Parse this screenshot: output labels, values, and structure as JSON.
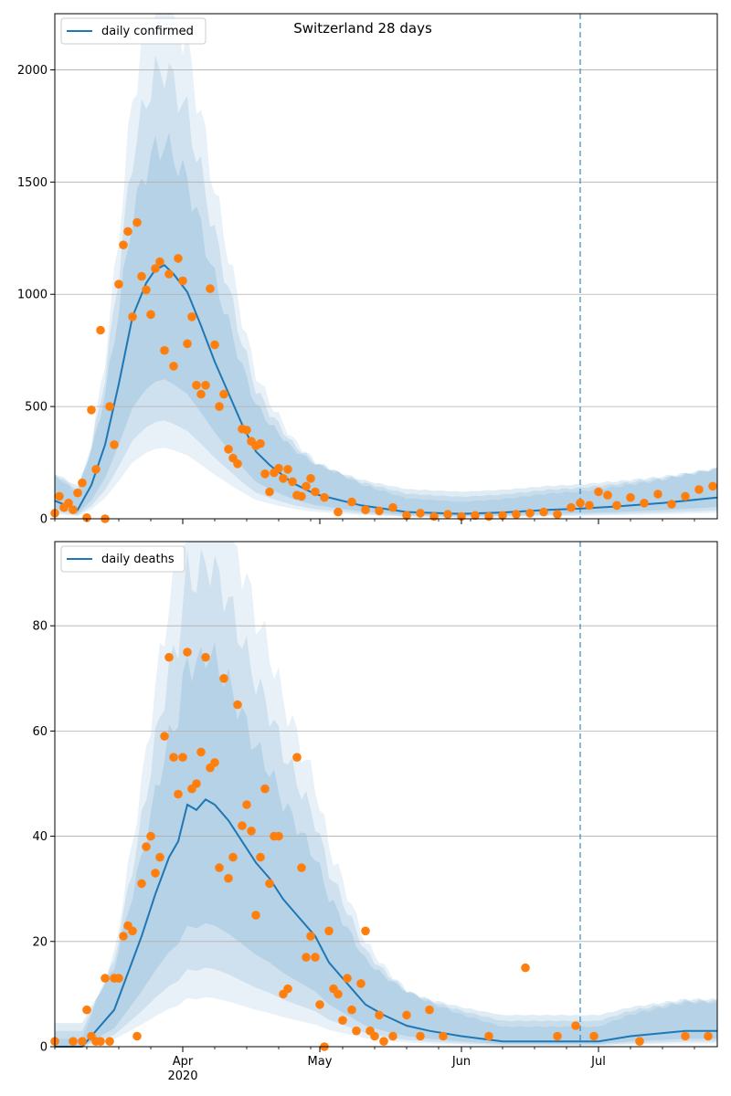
{
  "figure": {
    "title": "Switzerland 28 days"
  },
  "chart_data": [
    {
      "type": "line",
      "title": "Switzerland 28 days",
      "xlabel": "",
      "ylabel": "",
      "x_ticks": [
        {
          "date": "2020-04-01",
          "label": "Apr",
          "sublabel": "2020"
        },
        {
          "date": "2020-05-01",
          "label": "May",
          "sublabel": ""
        },
        {
          "date": "2020-06-01",
          "label": "Jun",
          "sublabel": ""
        },
        {
          "date": "2020-07-01",
          "label": "Jul",
          "sublabel": ""
        }
      ],
      "y_ticks": [
        0,
        500,
        1000,
        1500,
        2000
      ],
      "xlim": [
        "2020-03-04",
        "2020-07-27"
      ],
      "ylim": [
        0,
        2250
      ],
      "grid": "horizontal",
      "legend_position": "top-left",
      "forecast_start": "2020-06-27",
      "colors": {
        "model": "#1f77b4",
        "observed": "#ff7f0e",
        "band": "#1f77b4"
      },
      "series": [
        {
          "name": "daily confirmed",
          "kind": "line",
          "x": [
            "2020-03-04",
            "2020-03-09",
            "2020-03-12",
            "2020-03-15",
            "2020-03-18",
            "2020-03-21",
            "2020-03-24",
            "2020-03-26",
            "2020-03-28",
            "2020-03-30",
            "2020-04-02",
            "2020-04-05",
            "2020-04-08",
            "2020-04-11",
            "2020-04-14",
            "2020-04-17",
            "2020-04-20",
            "2020-04-25",
            "2020-04-30",
            "2020-05-10",
            "2020-05-20",
            "2020-06-01",
            "2020-06-10",
            "2020-06-20",
            "2020-06-27",
            "2020-07-05",
            "2020-07-15",
            "2020-07-27"
          ],
          "y": [
            80,
            40,
            150,
            330,
            600,
            900,
            1050,
            1110,
            1130,
            1090,
            1010,
            860,
            700,
            560,
            420,
            300,
            240,
            160,
            110,
            60,
            30,
            22,
            28,
            40,
            45,
            55,
            70,
            95
          ]
        },
        {
          "name": "",
          "kind": "scatter",
          "x": [
            "2020-03-04",
            "2020-03-05",
            "2020-03-06",
            "2020-03-07",
            "2020-03-08",
            "2020-03-09",
            "2020-03-10",
            "2020-03-11",
            "2020-03-12",
            "2020-03-13",
            "2020-03-14",
            "2020-03-15",
            "2020-03-16",
            "2020-03-17",
            "2020-03-18",
            "2020-03-19",
            "2020-03-20",
            "2020-03-21",
            "2020-03-22",
            "2020-03-23",
            "2020-03-24",
            "2020-03-25",
            "2020-03-26",
            "2020-03-27",
            "2020-03-28",
            "2020-03-29",
            "2020-03-30",
            "2020-03-31",
            "2020-04-01",
            "2020-04-02",
            "2020-04-03",
            "2020-04-04",
            "2020-04-05",
            "2020-04-06",
            "2020-04-07",
            "2020-04-08",
            "2020-04-09",
            "2020-04-10",
            "2020-04-11",
            "2020-04-12",
            "2020-04-13",
            "2020-04-14",
            "2020-04-15",
            "2020-04-16",
            "2020-04-17",
            "2020-04-18",
            "2020-04-19",
            "2020-04-20",
            "2020-04-21",
            "2020-04-22",
            "2020-04-23",
            "2020-04-24",
            "2020-04-25",
            "2020-04-26",
            "2020-04-27",
            "2020-04-28",
            "2020-04-29",
            "2020-04-30",
            "2020-05-02",
            "2020-05-05",
            "2020-05-08",
            "2020-05-11",
            "2020-05-14",
            "2020-05-17",
            "2020-05-20",
            "2020-05-23",
            "2020-05-26",
            "2020-05-29",
            "2020-06-01",
            "2020-06-04",
            "2020-06-07",
            "2020-06-10",
            "2020-06-13",
            "2020-06-16",
            "2020-06-19",
            "2020-06-22",
            "2020-06-25",
            "2020-06-27",
            "2020-06-29",
            "2020-07-01",
            "2020-07-03",
            "2020-07-05",
            "2020-07-08",
            "2020-07-11",
            "2020-07-14",
            "2020-07-17",
            "2020-07-20",
            "2020-07-23",
            "2020-07-26"
          ],
          "y": [
            25,
            100,
            50,
            70,
            40,
            115,
            160,
            5,
            485,
            220,
            840,
            0,
            500,
            330,
            1045,
            1220,
            1280,
            900,
            1320,
            1080,
            1020,
            910,
            1115,
            1145,
            750,
            1090,
            680,
            1160,
            1060,
            780,
            900,
            595,
            555,
            595,
            1025,
            775,
            500,
            555,
            310,
            270,
            245,
            400,
            395,
            345,
            325,
            335,
            200,
            120,
            205,
            225,
            180,
            220,
            165,
            105,
            100,
            145,
            180,
            120,
            95,
            30,
            75,
            40,
            35,
            50,
            15,
            25,
            10,
            20,
            10,
            15,
            10,
            15,
            20,
            25,
            30,
            20,
            50,
            70,
            60,
            120,
            105,
            60,
            95,
            70,
            110,
            65,
            100,
            130,
            145
          ]
        }
      ]
    },
    {
      "type": "line",
      "title": "",
      "xlabel": "",
      "ylabel": "",
      "x_ticks": [
        {
          "date": "2020-04-01",
          "label": "Apr",
          "sublabel": "2020"
        },
        {
          "date": "2020-05-01",
          "label": "May",
          "sublabel": ""
        },
        {
          "date": "2020-06-01",
          "label": "Jun",
          "sublabel": ""
        },
        {
          "date": "2020-07-01",
          "label": "Jul",
          "sublabel": ""
        }
      ],
      "y_ticks": [
        0,
        20,
        40,
        60,
        80
      ],
      "xlim": [
        "2020-03-04",
        "2020-07-27"
      ],
      "ylim": [
        0,
        96
      ],
      "grid": "horizontal",
      "legend_position": "top-left",
      "forecast_start": "2020-06-27",
      "colors": {
        "model": "#1f77b4",
        "observed": "#ff7f0e",
        "band": "#1f77b4"
      },
      "series": [
        {
          "name": "daily deaths",
          "kind": "line",
          "x": [
            "2020-03-04",
            "2020-03-10",
            "2020-03-13",
            "2020-03-17",
            "2020-03-20",
            "2020-03-23",
            "2020-03-26",
            "2020-03-29",
            "2020-03-31",
            "2020-04-02",
            "2020-04-04",
            "2020-04-06",
            "2020-04-08",
            "2020-04-11",
            "2020-04-14",
            "2020-04-17",
            "2020-04-20",
            "2020-04-23",
            "2020-04-26",
            "2020-04-30",
            "2020-05-03",
            "2020-05-07",
            "2020-05-11",
            "2020-05-15",
            "2020-05-20",
            "2020-05-25",
            "2020-06-01",
            "2020-06-10",
            "2020-06-20",
            "2020-06-27",
            "2020-07-01",
            "2020-07-08",
            "2020-07-20",
            "2020-07-27"
          ],
          "y": [
            0,
            0,
            3,
            7,
            14,
            21,
            29,
            36,
            39,
            46,
            45,
            47,
            46,
            43,
            39,
            35,
            32,
            28,
            25,
            21,
            16,
            12,
            8,
            6,
            4,
            3,
            2,
            1,
            1,
            1,
            1,
            2,
            3,
            3
          ]
        },
        {
          "name": "",
          "kind": "scatter",
          "x": [
            "2020-03-04",
            "2020-03-08",
            "2020-03-10",
            "2020-03-11",
            "2020-03-12",
            "2020-03-13",
            "2020-03-14",
            "2020-03-15",
            "2020-03-16",
            "2020-03-17",
            "2020-03-18",
            "2020-03-19",
            "2020-03-20",
            "2020-03-21",
            "2020-03-22",
            "2020-03-23",
            "2020-03-24",
            "2020-03-25",
            "2020-03-26",
            "2020-03-27",
            "2020-03-28",
            "2020-03-29",
            "2020-03-30",
            "2020-03-31",
            "2020-04-01",
            "2020-04-02",
            "2020-04-03",
            "2020-04-04",
            "2020-04-05",
            "2020-04-06",
            "2020-04-07",
            "2020-04-08",
            "2020-04-09",
            "2020-04-10",
            "2020-04-11",
            "2020-04-12",
            "2020-04-13",
            "2020-04-14",
            "2020-04-15",
            "2020-04-16",
            "2020-04-17",
            "2020-04-18",
            "2020-04-19",
            "2020-04-20",
            "2020-04-21",
            "2020-04-22",
            "2020-04-23",
            "2020-04-24",
            "2020-04-26",
            "2020-04-27",
            "2020-04-28",
            "2020-04-29",
            "2020-04-30",
            "2020-05-01",
            "2020-05-02",
            "2020-05-03",
            "2020-05-04",
            "2020-05-05",
            "2020-05-06",
            "2020-05-07",
            "2020-05-08",
            "2020-05-09",
            "2020-05-10",
            "2020-05-11",
            "2020-05-12",
            "2020-05-13",
            "2020-05-14",
            "2020-05-15",
            "2020-05-17",
            "2020-05-20",
            "2020-05-23",
            "2020-05-25",
            "2020-05-28",
            "2020-06-07",
            "2020-06-15",
            "2020-06-22",
            "2020-06-26",
            "2020-06-30",
            "2020-07-10",
            "2020-07-20",
            "2020-07-25"
          ],
          "y": [
            1,
            1,
            1,
            7,
            2,
            1,
            1,
            13,
            1,
            13,
            13,
            21,
            23,
            22,
            2,
            31,
            38,
            40,
            33,
            36,
            59,
            74,
            55,
            48,
            55,
            75,
            49,
            50,
            56,
            74,
            53,
            54,
            34,
            70,
            32,
            36,
            65,
            42,
            46,
            41,
            25,
            36,
            49,
            31,
            40,
            40,
            10,
            11,
            55,
            34,
            17,
            21,
            17,
            8,
            0,
            22,
            11,
            10,
            5,
            13,
            7,
            3,
            12,
            22,
            3,
            2,
            6,
            1,
            2,
            6,
            2,
            7,
            2,
            2,
            15,
            2,
            4,
            2,
            1,
            2,
            2
          ]
        }
      ]
    }
  ]
}
